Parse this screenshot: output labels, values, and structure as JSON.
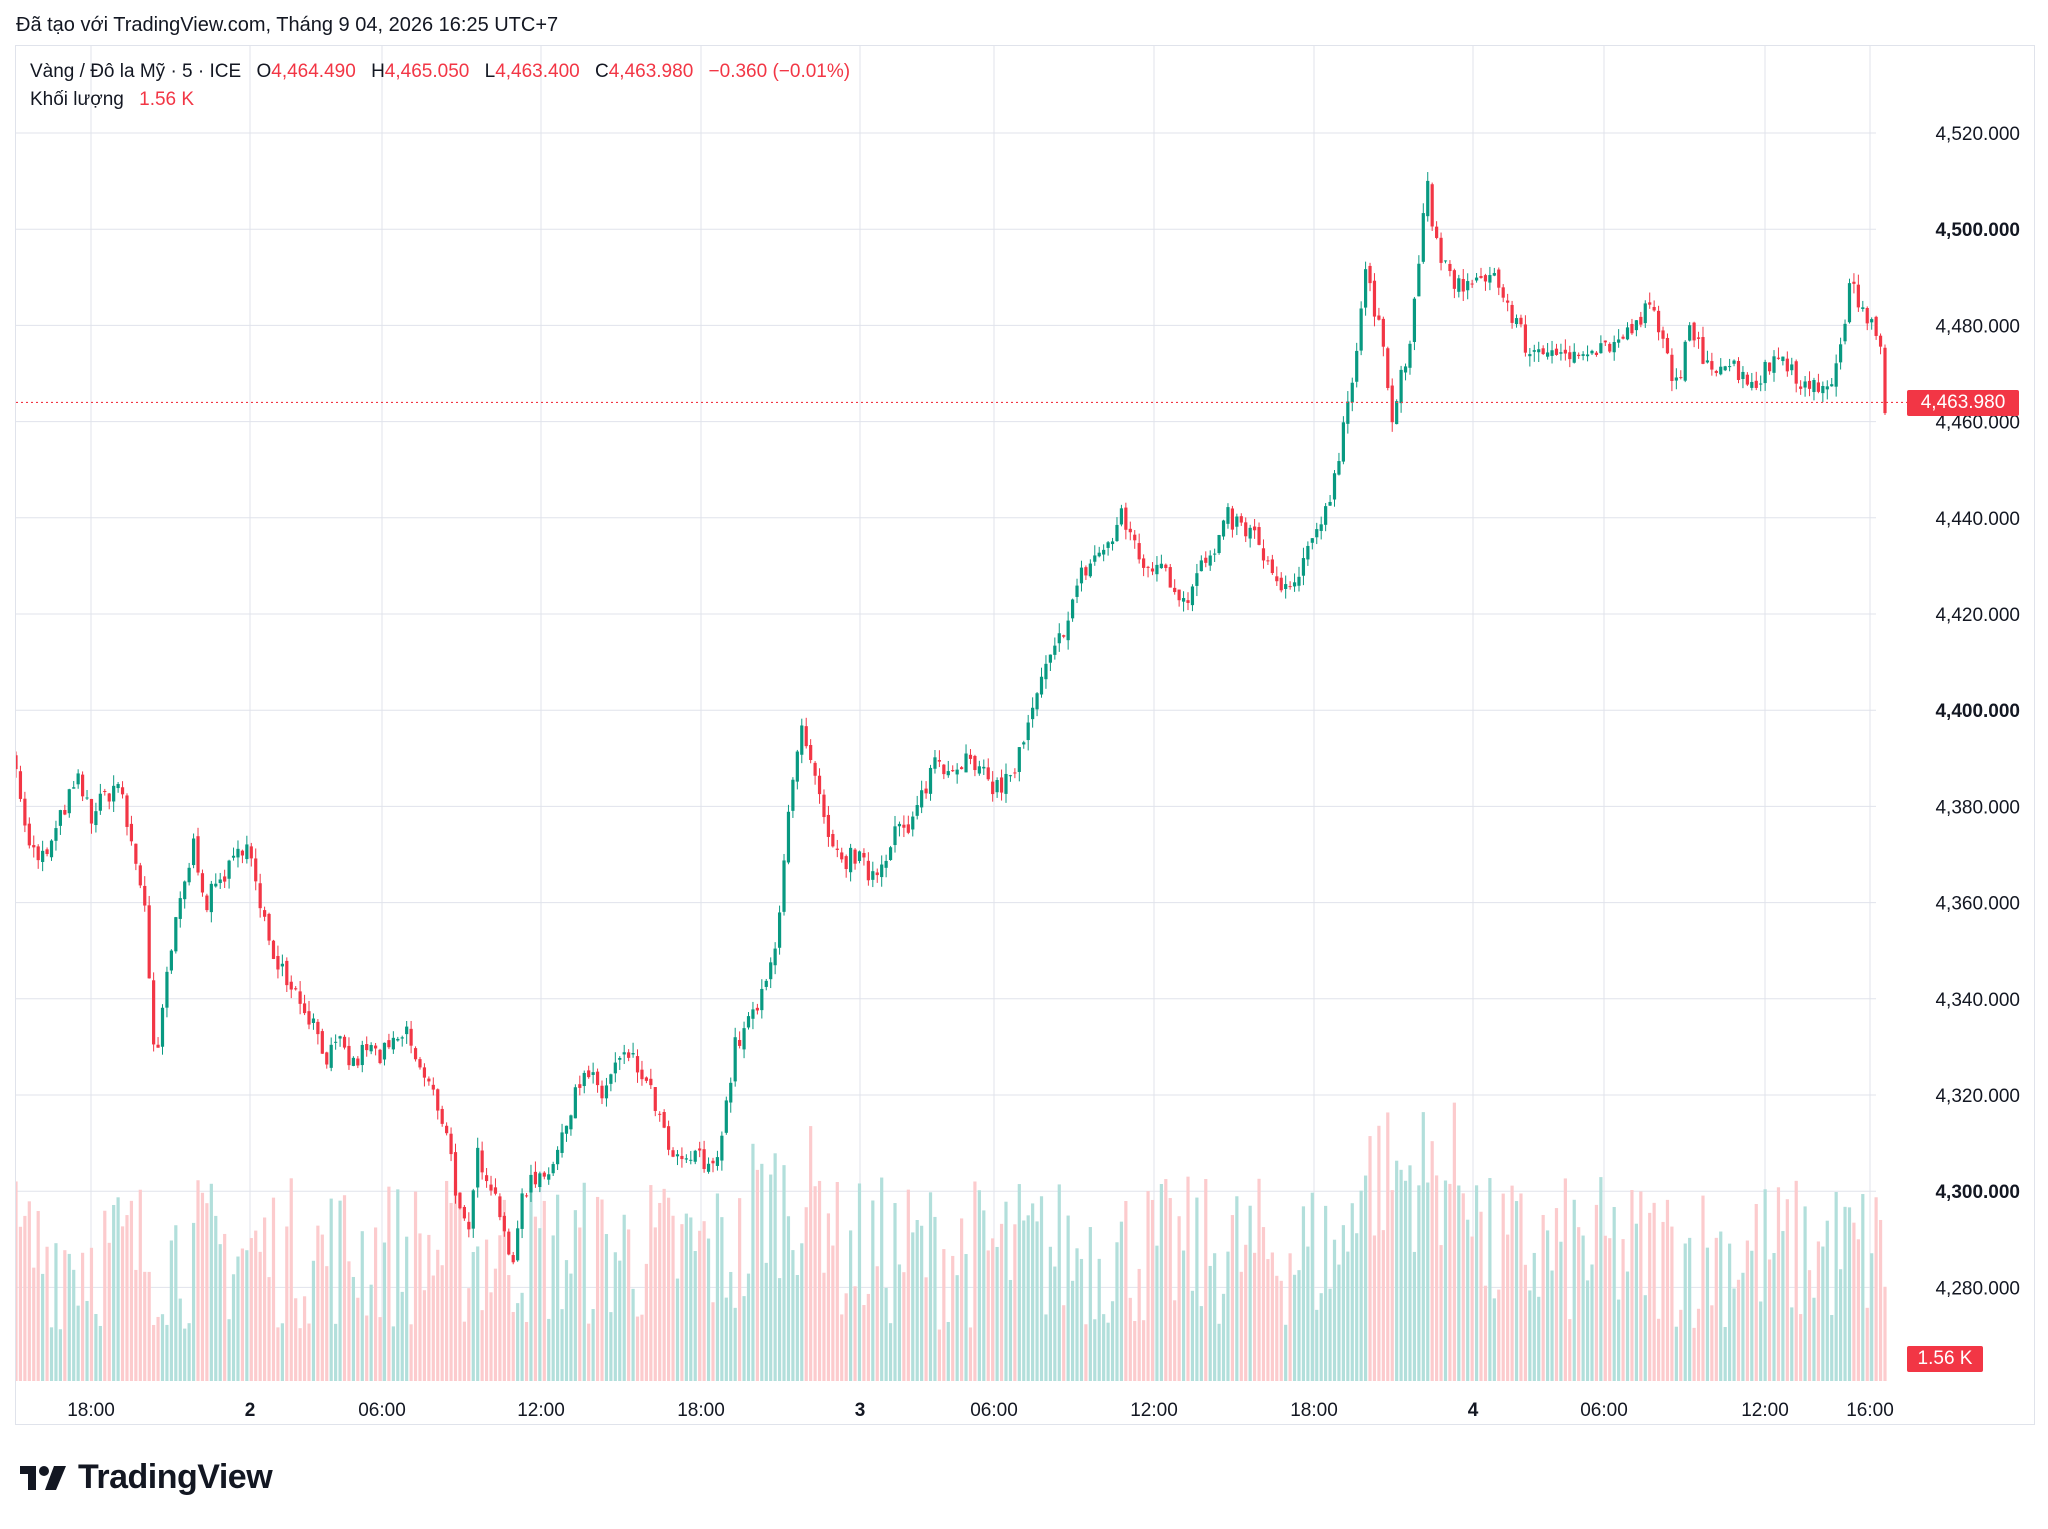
{
  "caption": "Đã tạo với TradingView.com, Tháng 9 04, 2026 16:25 UTC+7",
  "legend": {
    "symbol": "Vàng / Đô la Mỹ · 5 · ICE",
    "o_label": "O",
    "o_value": "4,464.490",
    "h_label": "H",
    "h_value": "4,465.050",
    "l_label": "L",
    "l_value": "4,463.400",
    "c_label": "C",
    "c_value": "4,463.980",
    "change": "−0.360 (−0.01%)",
    "volume_label": "Khối lượng",
    "volume_value": "1.56 K"
  },
  "last_price_tag": "4,463.980",
  "last_volume_tag": "1.56 K",
  "brand": "TradingView",
  "colors": {
    "up": "#089981",
    "down": "#f23645",
    "up_vol": "#b2dfdb",
    "down_vol": "#fccbcd",
    "grid": "#e0e3eb"
  },
  "chart_data": {
    "type": "candlestick",
    "title": "Vàng / Đô la Mỹ · 5 · ICE",
    "y_range": [
      4260,
      4535
    ],
    "y_ticks": [
      {
        "value": 4520,
        "label": "4,520.000",
        "bold": false
      },
      {
        "value": 4500,
        "label": "4,500.000",
        "bold": true
      },
      {
        "value": 4480,
        "label": "4,480.000",
        "bold": false
      },
      {
        "value": 4460,
        "label": "4,460.000",
        "bold": false
      },
      {
        "value": 4440,
        "label": "4,440.000",
        "bold": false
      },
      {
        "value": 4420,
        "label": "4,420.000",
        "bold": false
      },
      {
        "value": 4400,
        "label": "4,400.000",
        "bold": true
      },
      {
        "value": 4380,
        "label": "4,380.000",
        "bold": false
      },
      {
        "value": 4360,
        "label": "4,360.000",
        "bold": false
      },
      {
        "value": 4340,
        "label": "4,340.000",
        "bold": false
      },
      {
        "value": 4320,
        "label": "4,320.000",
        "bold": false
      },
      {
        "value": 4300,
        "label": "4,300.000",
        "bold": true
      },
      {
        "value": 4280,
        "label": "4,280.000",
        "bold": false
      }
    ],
    "x_ticks": [
      {
        "label": "18:00",
        "bold": false
      },
      {
        "label": "2",
        "bold": true
      },
      {
        "label": "06:00",
        "bold": false
      },
      {
        "label": "12:00",
        "bold": false
      },
      {
        "label": "18:00",
        "bold": false
      },
      {
        "label": "3",
        "bold": true
      },
      {
        "label": "06:00",
        "bold": false
      },
      {
        "label": "12:00",
        "bold": false
      },
      {
        "label": "18:00",
        "bold": false
      },
      {
        "label": "4",
        "bold": true
      },
      {
        "label": "06:00",
        "bold": false
      },
      {
        "label": "12:00",
        "bold": false
      },
      {
        "label": "16:00",
        "bold": false
      }
    ],
    "last_close": 4463.98,
    "price_path": [
      [
        0,
        4390
      ],
      [
        2,
        4375
      ],
      [
        5,
        4368
      ],
      [
        8,
        4372
      ],
      [
        11,
        4380
      ],
      [
        14,
        4385
      ],
      [
        17,
        4378
      ],
      [
        20,
        4382
      ],
      [
        23,
        4385
      ],
      [
        26,
        4372
      ],
      [
        29,
        4360
      ],
      [
        31,
        4330
      ],
      [
        32,
        4328
      ],
      [
        34,
        4345
      ],
      [
        37,
        4360
      ],
      [
        40,
        4372
      ],
      [
        43,
        4360
      ],
      [
        46,
        4365
      ],
      [
        49,
        4368
      ],
      [
        52,
        4374
      ],
      [
        55,
        4358
      ],
      [
        58,
        4350
      ],
      [
        61,
        4345
      ],
      [
        64,
        4340
      ],
      [
        67,
        4335
      ],
      [
        70,
        4328
      ],
      [
        73,
        4330
      ],
      [
        76,
        4326
      ],
      [
        79,
        4330
      ],
      [
        82,
        4328
      ],
      [
        85,
        4330
      ],
      [
        88,
        4333
      ],
      [
        91,
        4325
      ],
      [
        94,
        4320
      ],
      [
        97,
        4313
      ],
      [
        100,
        4295
      ],
      [
        102,
        4290
      ],
      [
        104,
        4308
      ],
      [
        107,
        4302
      ],
      [
        110,
        4293
      ],
      [
        112,
        4283
      ],
      [
        114,
        4300
      ],
      [
        117,
        4303
      ],
      [
        120,
        4305
      ],
      [
        123,
        4310
      ],
      [
        126,
        4322
      ],
      [
        129,
        4324
      ],
      [
        132,
        4320
      ],
      [
        135,
        4326
      ],
      [
        138,
        4328
      ],
      [
        141,
        4324
      ],
      [
        144,
        4318
      ],
      [
        147,
        4308
      ],
      [
        150,
        4305
      ],
      [
        153,
        4308
      ],
      [
        156,
        4304
      ],
      [
        159,
        4312
      ],
      [
        162,
        4330
      ],
      [
        165,
        4335
      ],
      [
        168,
        4340
      ],
      [
        171,
        4350
      ],
      [
        174,
        4380
      ],
      [
        177,
        4395
      ],
      [
        180,
        4385
      ],
      [
        183,
        4372
      ],
      [
        186,
        4368
      ],
      [
        189,
        4370
      ],
      [
        192,
        4366
      ],
      [
        195,
        4368
      ],
      [
        198,
        4376
      ],
      [
        201,
        4374
      ],
      [
        204,
        4382
      ],
      [
        207,
        4390
      ],
      [
        210,
        4388
      ],
      [
        213,
        4390
      ],
      [
        216,
        4388
      ],
      [
        219,
        4385
      ],
      [
        222,
        4384
      ],
      [
        225,
        4388
      ],
      [
        228,
        4396
      ],
      [
        231,
        4406
      ],
      [
        234,
        4412
      ],
      [
        237,
        4420
      ],
      [
        240,
        4428
      ],
      [
        243,
        4432
      ],
      [
        246,
        4434
      ],
      [
        249,
        4440
      ],
      [
        252,
        4435
      ],
      [
        255,
        4428
      ],
      [
        258,
        4432
      ],
      [
        261,
        4425
      ],
      [
        264,
        4424
      ],
      [
        267,
        4430
      ],
      [
        270,
        4432
      ],
      [
        273,
        4440
      ],
      [
        276,
        4438
      ],
      [
        279,
        4436
      ],
      [
        282,
        4430
      ],
      [
        285,
        4424
      ],
      [
        288,
        4426
      ],
      [
        291,
        4432
      ],
      [
        294,
        4440
      ],
      [
        297,
        4448
      ],
      [
        300,
        4465
      ],
      [
        302,
        4475
      ],
      [
        304,
        4492
      ],
      [
        306,
        4482
      ],
      [
        308,
        4476
      ],
      [
        310,
        4462
      ],
      [
        312,
        4470
      ],
      [
        314,
        4475
      ],
      [
        316,
        4495
      ],
      [
        318,
        4508
      ],
      [
        320,
        4496
      ],
      [
        323,
        4490
      ],
      [
        326,
        4488
      ],
      [
        329,
        4488
      ],
      [
        332,
        4492
      ],
      [
        335,
        4486
      ],
      [
        338,
        4480
      ],
      [
        341,
        4474
      ],
      [
        344,
        4476
      ],
      [
        347,
        4472
      ],
      [
        350,
        4474
      ],
      [
        353,
        4476
      ],
      [
        356,
        4475
      ],
      [
        359,
        4476
      ],
      [
        362,
        4477
      ],
      [
        365,
        4480
      ],
      [
        368,
        4484
      ],
      [
        371,
        4476
      ],
      [
        374,
        4468
      ],
      [
        377,
        4478
      ],
      [
        380,
        4474
      ],
      [
        383,
        4472
      ],
      [
        386,
        4472
      ],
      [
        389,
        4470
      ],
      [
        392,
        4468
      ],
      [
        395,
        4472
      ],
      [
        398,
        4474
      ],
      [
        401,
        4470
      ],
      [
        404,
        4466
      ],
      [
        407,
        4468
      ],
      [
        410,
        4470
      ],
      [
        413,
        4488
      ],
      [
        416,
        4484
      ],
      [
        418,
        4480
      ],
      [
        420,
        4474
      ],
      [
        421,
        4464
      ]
    ],
    "volume_scale_k": [
      0,
      3.5
    ]
  }
}
